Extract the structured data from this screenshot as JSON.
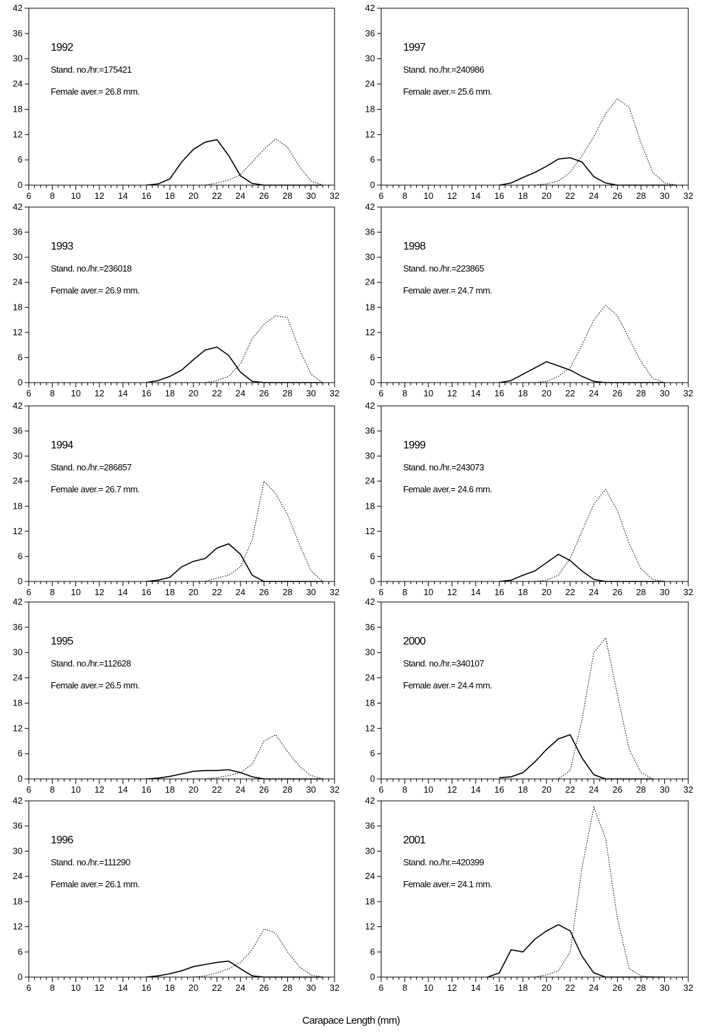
{
  "figure": {
    "xlabel": "Carapace Length (mm)",
    "xlim": [
      6,
      32
    ],
    "ylim": [
      0,
      42
    ],
    "xticks": [
      "6",
      "8",
      "10",
      "12",
      "14",
      "16",
      "18",
      "20",
      "22",
      "24",
      "26",
      "28",
      "30",
      "32"
    ],
    "yticks": [
      "0",
      "6",
      "12",
      "18",
      "24",
      "30",
      "36",
      "42"
    ]
  },
  "chart_data": [
    {
      "type": "line",
      "year": "1992",
      "stand": "Stand. no./hr.=175421",
      "female": "Female aver.= 26.8 mm.",
      "x": [
        16,
        17,
        18,
        19,
        20,
        21,
        22,
        23,
        24,
        25,
        26,
        27,
        28,
        29,
        30,
        31
      ],
      "series": [
        {
          "values": [
            0,
            0.3,
            1.5,
            5.5,
            8.5,
            10.2,
            10.8,
            7.0,
            2.2,
            0.4,
            0,
            0,
            0,
            0,
            0,
            0
          ]
        },
        {
          "values": [
            0,
            0,
            0,
            0,
            0,
            0,
            0.5,
            1.2,
            2.5,
            5.5,
            8.5,
            11.0,
            9.0,
            4.5,
            1.0,
            0
          ]
        }
      ]
    },
    {
      "type": "line",
      "year": "1997",
      "stand": "Stand. no./hr.=240986",
      "female": "Female aver.= 25.6 mm.",
      "x": [
        16,
        17,
        18,
        19,
        20,
        21,
        22,
        23,
        24,
        25,
        26,
        27,
        28,
        29,
        30,
        31
      ],
      "series": [
        {
          "values": [
            0,
            0.5,
            1.8,
            3.0,
            4.5,
            6.2,
            6.5,
            5.5,
            2.0,
            0.5,
            0,
            0,
            0,
            0,
            0,
            0
          ]
        },
        {
          "values": [
            0,
            0,
            0,
            0,
            0.3,
            1.0,
            3.0,
            7.0,
            11.5,
            17.0,
            20.5,
            18.5,
            10.0,
            3.0,
            0.5,
            0
          ]
        }
      ]
    },
    {
      "type": "line",
      "year": "1993",
      "stand": "Stand. no./hr.=236018",
      "female": "Female aver.= 26.9 mm.",
      "x": [
        16,
        17,
        18,
        19,
        20,
        21,
        22,
        23,
        24,
        25,
        26,
        27,
        28,
        29,
        30,
        31
      ],
      "series": [
        {
          "values": [
            0,
            0.5,
            1.5,
            3.0,
            5.5,
            7.8,
            8.5,
            6.5,
            2.5,
            0.3,
            0,
            0,
            0,
            0,
            0,
            0
          ]
        },
        {
          "values": [
            0,
            0,
            0,
            0,
            0,
            0,
            0.5,
            1.5,
            4.5,
            10.5,
            14.0,
            16.0,
            15.5,
            8.0,
            2.0,
            0
          ]
        }
      ]
    },
    {
      "type": "line",
      "year": "1998",
      "stand": "Stand. no./hr.=223865",
      "female": "Female aver.= 24.7 mm.",
      "x": [
        16,
        17,
        18,
        19,
        20,
        21,
        22,
        23,
        24,
        25,
        26,
        27,
        28,
        29,
        30
      ],
      "series": [
        {
          "values": [
            0,
            0.5,
            2.0,
            3.5,
            5.0,
            4.0,
            3.0,
            1.5,
            0.3,
            0,
            0,
            0,
            0,
            0,
            0
          ]
        },
        {
          "values": [
            0,
            0,
            0,
            0,
            0.3,
            1.5,
            3.5,
            9.0,
            15.0,
            18.5,
            16.0,
            10.5,
            5.0,
            1.0,
            0
          ]
        }
      ]
    },
    {
      "type": "line",
      "year": "1994",
      "stand": "Stand. no./hr.=286857",
      "female": "Female aver.= 26.7 mm.",
      "x": [
        16,
        17,
        18,
        19,
        20,
        21,
        22,
        23,
        24,
        25,
        26,
        27,
        28,
        29,
        30,
        31
      ],
      "series": [
        {
          "values": [
            0,
            0.3,
            1.0,
            3.5,
            4.8,
            5.5,
            8.0,
            9.0,
            6.5,
            1.5,
            0,
            0,
            0,
            0,
            0,
            0
          ]
        },
        {
          "values": [
            0,
            0,
            0,
            0,
            0,
            0,
            0.8,
            1.5,
            3.5,
            10.0,
            24.0,
            21.0,
            16.0,
            9.0,
            2.5,
            0
          ]
        }
      ]
    },
    {
      "type": "line",
      "year": "1999",
      "stand": "Stand. no./hr.=243073",
      "female": "Female aver.= 24.6 mm.",
      "x": [
        16,
        17,
        18,
        19,
        20,
        21,
        22,
        23,
        24,
        25,
        26,
        27,
        28,
        29,
        30
      ],
      "series": [
        {
          "values": [
            0,
            0.3,
            1.5,
            2.5,
            4.5,
            6.5,
            5.0,
            2.5,
            0.5,
            0,
            0,
            0,
            0,
            0,
            0
          ]
        },
        {
          "values": [
            0,
            0,
            0,
            0,
            0.3,
            1.5,
            5.5,
            12.0,
            18.5,
            22.0,
            17.0,
            9.0,
            3.0,
            0.5,
            0
          ]
        }
      ]
    },
    {
      "type": "line",
      "year": "1995",
      "stand": "Stand. no./hr.=112628",
      "female": "Female aver.= 26.5 mm.",
      "x": [
        16,
        17,
        18,
        19,
        20,
        21,
        22,
        23,
        24,
        25,
        26,
        27,
        28,
        29,
        30,
        31
      ],
      "series": [
        {
          "values": [
            0,
            0.2,
            0.6,
            1.2,
            1.8,
            2.0,
            2.0,
            2.2,
            1.5,
            0.5,
            0,
            0,
            0,
            0,
            0,
            0
          ]
        },
        {
          "values": [
            0,
            0,
            0,
            0,
            0,
            0,
            0.3,
            0.8,
            1.5,
            3.5,
            9.0,
            10.5,
            6.5,
            3.0,
            0.8,
            0
          ]
        }
      ]
    },
    {
      "type": "line",
      "year": "2000",
      "stand": "Stand. no./hr.=340107",
      "female": "Female aver.= 24.4 mm.",
      "x": [
        16,
        17,
        18,
        19,
        20,
        21,
        22,
        23,
        24,
        25,
        26,
        27,
        28,
        29
      ],
      "series": [
        {
          "values": [
            0.3,
            0.5,
            1.5,
            4.0,
            7.0,
            9.5,
            10.5,
            5.0,
            1.0,
            0,
            0,
            0,
            0,
            0
          ]
        },
        {
          "values": [
            0,
            0,
            0,
            0,
            0,
            0,
            2.0,
            14.0,
            30.0,
            33.5,
            20.0,
            7.0,
            1.5,
            0
          ]
        }
      ]
    },
    {
      "type": "line",
      "year": "1996",
      "stand": "Stand. no./hr.=111290",
      "female": "Female aver.= 26.1 mm.",
      "x": [
        16,
        17,
        18,
        19,
        20,
        21,
        22,
        23,
        24,
        25,
        26,
        27,
        28,
        29,
        30,
        31
      ],
      "series": [
        {
          "values": [
            0,
            0.3,
            0.8,
            1.5,
            2.5,
            3.0,
            3.5,
            3.8,
            2.0,
            0.3,
            0,
            0,
            0,
            0,
            0,
            0
          ]
        },
        {
          "values": [
            0,
            0,
            0,
            0,
            0,
            0.3,
            1.0,
            2.0,
            3.5,
            6.5,
            11.5,
            10.5,
            6.0,
            2.5,
            0.5,
            0
          ]
        }
      ]
    },
    {
      "type": "line",
      "year": "2001",
      "stand": "Stand. no./hr.=420399",
      "female": "Female aver.= 24.1 mm.",
      "x": [
        15,
        16,
        17,
        18,
        19,
        20,
        21,
        22,
        23,
        24,
        25,
        26,
        27,
        28,
        29,
        30
      ],
      "series": [
        {
          "values": [
            0,
            1.0,
            6.5,
            6.0,
            9.0,
            11.0,
            12.5,
            11.0,
            5.0,
            1.0,
            0,
            0,
            0,
            0,
            0,
            0
          ]
        },
        {
          "values": [
            0,
            0,
            0,
            0,
            0,
            0.5,
            1.5,
            6.0,
            26.0,
            40.5,
            33.0,
            14.0,
            2.0,
            0.3,
            0,
            0
          ]
        }
      ]
    }
  ]
}
